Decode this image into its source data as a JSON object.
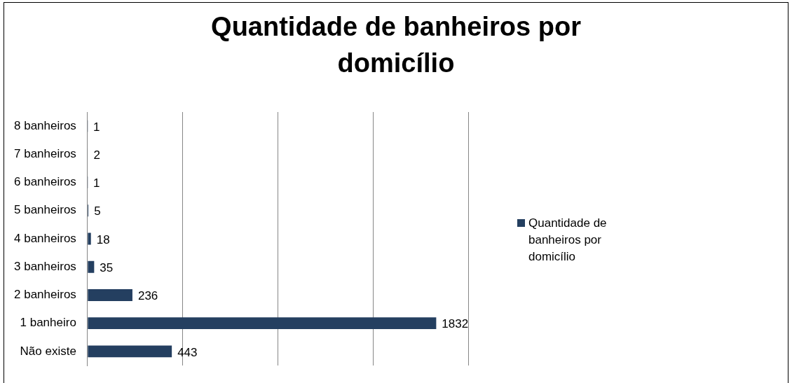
{
  "chart_data": {
    "type": "bar",
    "orientation": "horizontal",
    "title": "Quantidade de banheiros por domicílio",
    "categories": [
      "8 banheiros",
      "7 banheiros",
      "6 banheiros",
      "5 banheiros",
      "4 banheiros",
      "3 banheiros",
      "2 banheiros",
      "1 banheiro",
      "Não existe"
    ],
    "series": [
      {
        "name": "Quantidade de banheiros por domicílio",
        "color": "#243f60",
        "values": [
          1,
          2,
          1,
          5,
          18,
          35,
          236,
          1832,
          443
        ]
      }
    ],
    "xlim": [
      0,
      2000
    ],
    "xticks": [
      {
        "value": 0,
        "label": null
      },
      {
        "value": 500,
        "label": null
      },
      {
        "value": 1000,
        "label": null
      },
      {
        "value": 1500,
        "label": null
      },
      {
        "value": 2000,
        "label": null
      }
    ],
    "grid": "x",
    "tick_labels": "y",
    "legend": "right",
    "data_labels": true
  }
}
